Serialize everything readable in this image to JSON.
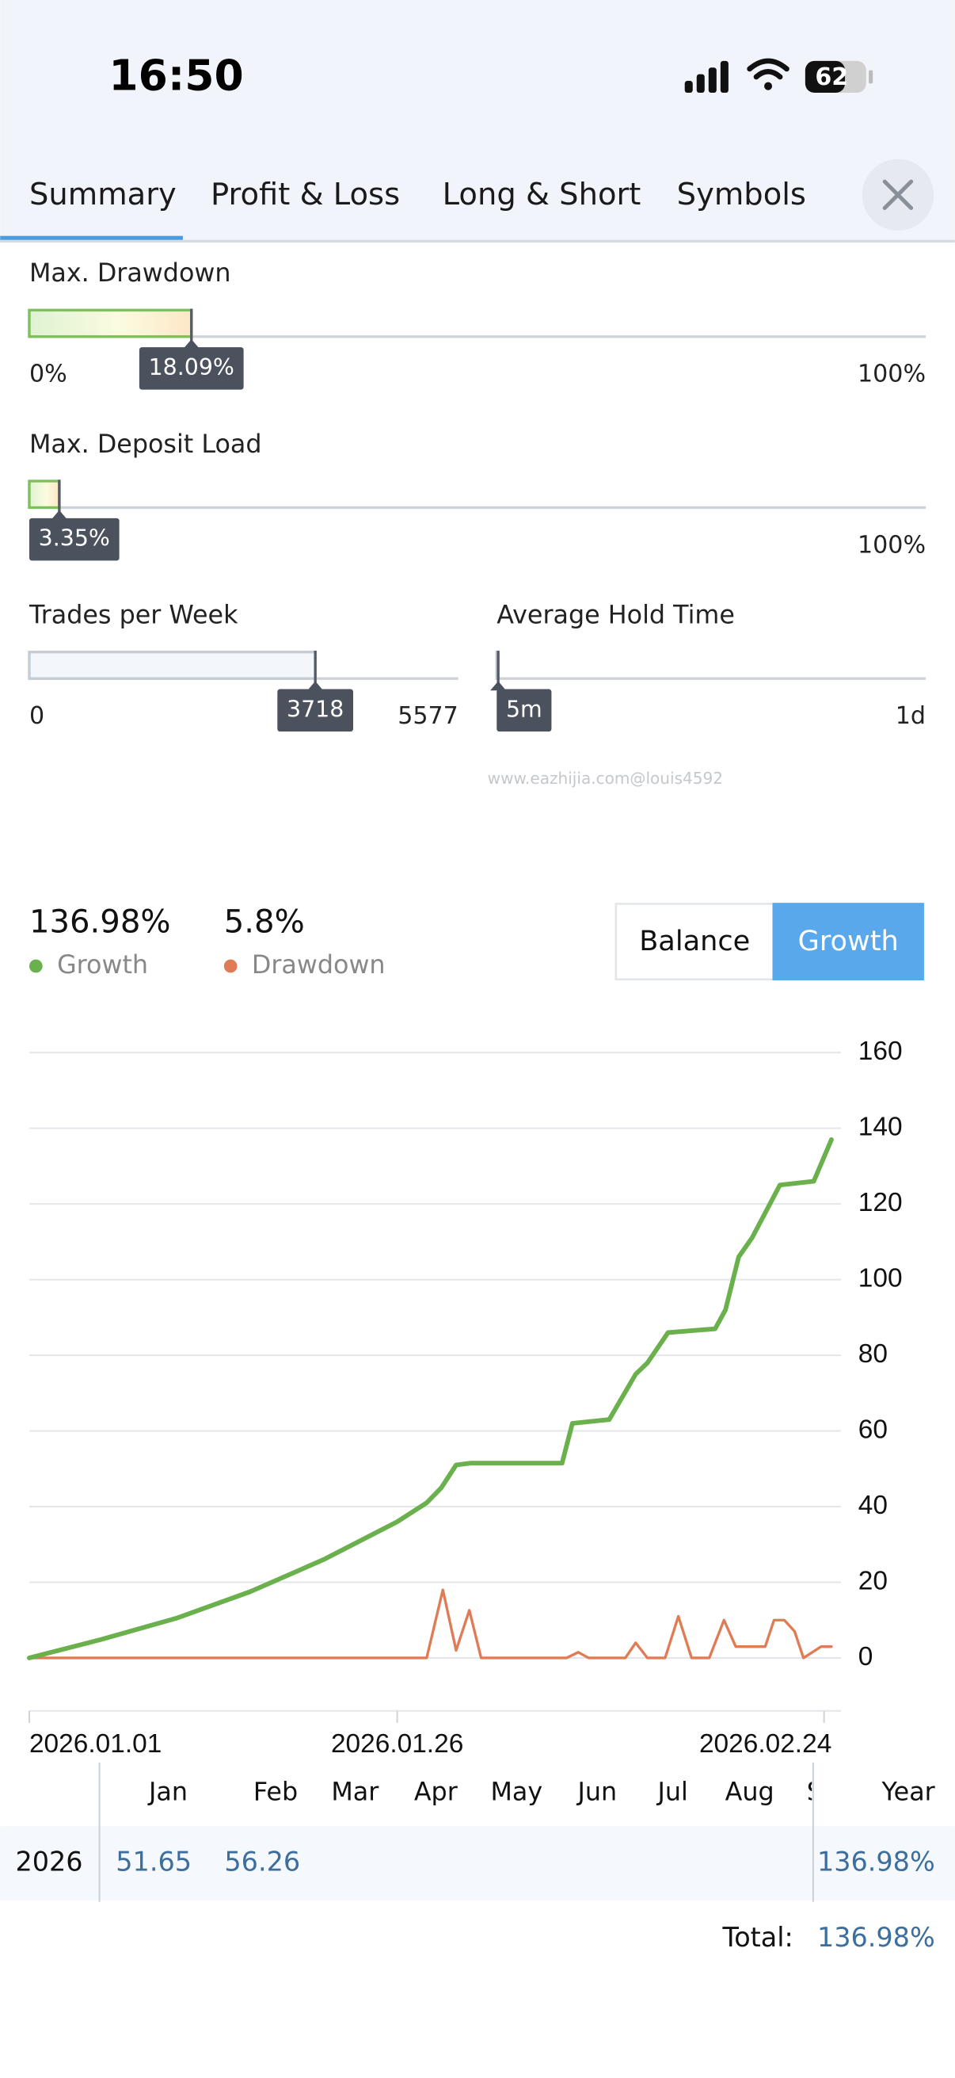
{
  "status_bar": {
    "time": "16:50",
    "battery": "62"
  },
  "tabs": [
    "Summary",
    "Profit & Loss",
    "Long & Short",
    "Symbols"
  ],
  "gauges": [
    {
      "title": "Max. Drawdown",
      "min": {
        "value": 0,
        "label": "0%"
      },
      "value": {
        "value": 18.09,
        "label": "18.09%"
      },
      "max": {
        "value": 100,
        "label": "100%"
      }
    },
    {
      "title": "Max. Deposit Load",
      "min": {
        "value": 0,
        "label": "0%"
      },
      "value": {
        "value": 3.35,
        "label": "3.35%"
      },
      "max": {
        "value": 100,
        "label": "100%"
      }
    },
    {
      "title": "Trades per Week",
      "min": 0,
      "value": 3718,
      "max": 5577
    },
    {
      "title": "Average Hold Time",
      "value": {
        "value": 5,
        "label": "5m"
      },
      "max": {
        "value": 1440,
        "label": "1d"
      }
    }
  ],
  "watermark": "www.eazhijia.com@louis4592",
  "toggle": {
    "options": [
      "Balance",
      "Growth"
    ],
    "active": 1
  },
  "chart_data": {
    "type": "line",
    "xlim": [
      0,
      54.7
    ],
    "xticks": [
      {
        "value": 0,
        "label": "2026.01.01"
      },
      {
        "value": 25,
        "label": "2026.01.26"
      },
      {
        "value": 54,
        "label": "2026.02.24"
      }
    ],
    "ylim": [
      -14,
      165
    ],
    "yticks": [
      0,
      20,
      40,
      60,
      80,
      100,
      120,
      140,
      160
    ],
    "grid": true,
    "series": [
      {
        "name": "Growth",
        "summary": "136.98%",
        "color": "#6ab04c",
        "x": [
          0,
          5,
          10,
          15,
          20,
          25,
          27,
          28,
          29,
          30,
          33,
          36.2,
          36.9,
          39.4,
          41.2,
          42,
          43.4,
          46.6,
          47.3,
          48.2,
          49.1,
          51,
          53.3,
          54.5
        ],
        "values": [
          0,
          5,
          10.5,
          17.5,
          26,
          36,
          41,
          45,
          51,
          51.5,
          51.5,
          51.5,
          62,
          63,
          75,
          78,
          86,
          87,
          92,
          106,
          111,
          125,
          126,
          137
        ]
      },
      {
        "name": "Drawdown",
        "summary": "5.8%",
        "color": "#e07c55",
        "x": [
          0,
          27,
          28.1,
          29,
          29.9,
          30.7,
          36.5,
          37.3,
          38,
          40.5,
          41.2,
          42,
          43.2,
          44.1,
          45,
          46.2,
          47.2,
          48,
          50,
          50.6,
          51.3,
          52,
          52.6,
          53.8,
          54.5
        ],
        "values": [
          0,
          0,
          18,
          2,
          12.6,
          0,
          0,
          1.5,
          0,
          0,
          4,
          0,
          0,
          11,
          0,
          0,
          10,
          3,
          3,
          10,
          10,
          7,
          0,
          3,
          3
        ]
      }
    ]
  },
  "monthly": {
    "columns": [
      "Jan",
      "Feb",
      "Mar",
      "Apr",
      "May",
      "Jun",
      "Jul",
      "Aug",
      "Sep"
    ],
    "year_header": "Year",
    "rows": [
      {
        "year": "2026",
        "values": [
          "51.65",
          "56.26"
        ],
        "total": "136.98%"
      }
    ],
    "total_label": "Total:",
    "total": "136.98%"
  }
}
